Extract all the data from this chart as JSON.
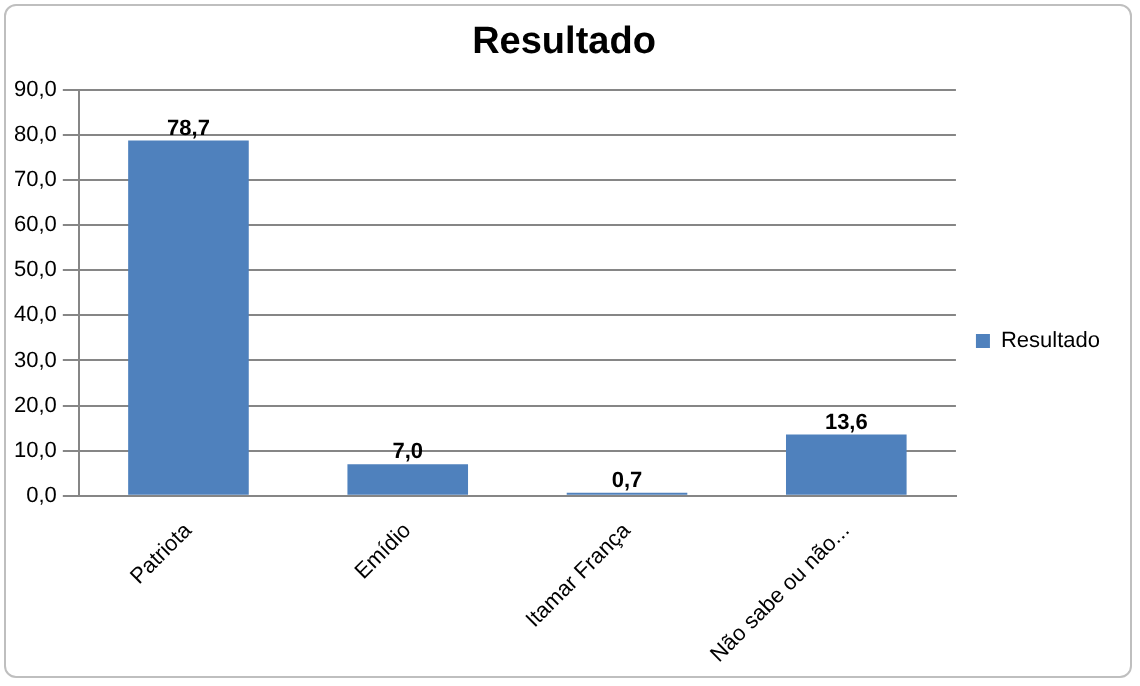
{
  "chart_data": {
    "type": "bar",
    "title": "Resultado",
    "categories": [
      "Patriota",
      "Emídio",
      "Itamar França",
      "Não sabe ou não..."
    ],
    "series": [
      {
        "name": "Resultado",
        "color": "#4f81bd",
        "values": [
          78.7,
          7.0,
          0.7,
          13.6
        ],
        "value_labels": [
          "78,7",
          "7,0",
          "0,7",
          "13,6"
        ]
      }
    ],
    "ylim": [
      0,
      90
    ],
    "yticks": [
      {
        "value": 0,
        "label": "0,0"
      },
      {
        "value": 10,
        "label": "10,0"
      },
      {
        "value": 20,
        "label": "20,0"
      },
      {
        "value": 30,
        "label": "30,0"
      },
      {
        "value": 40,
        "label": "40,0"
      },
      {
        "value": 50,
        "label": "50,0"
      },
      {
        "value": 60,
        "label": "60,0"
      },
      {
        "value": 70,
        "label": "70,0"
      },
      {
        "value": 80,
        "label": "80,0"
      },
      {
        "value": 90,
        "label": "90,0"
      }
    ],
    "grid": "y",
    "legend": "right"
  }
}
